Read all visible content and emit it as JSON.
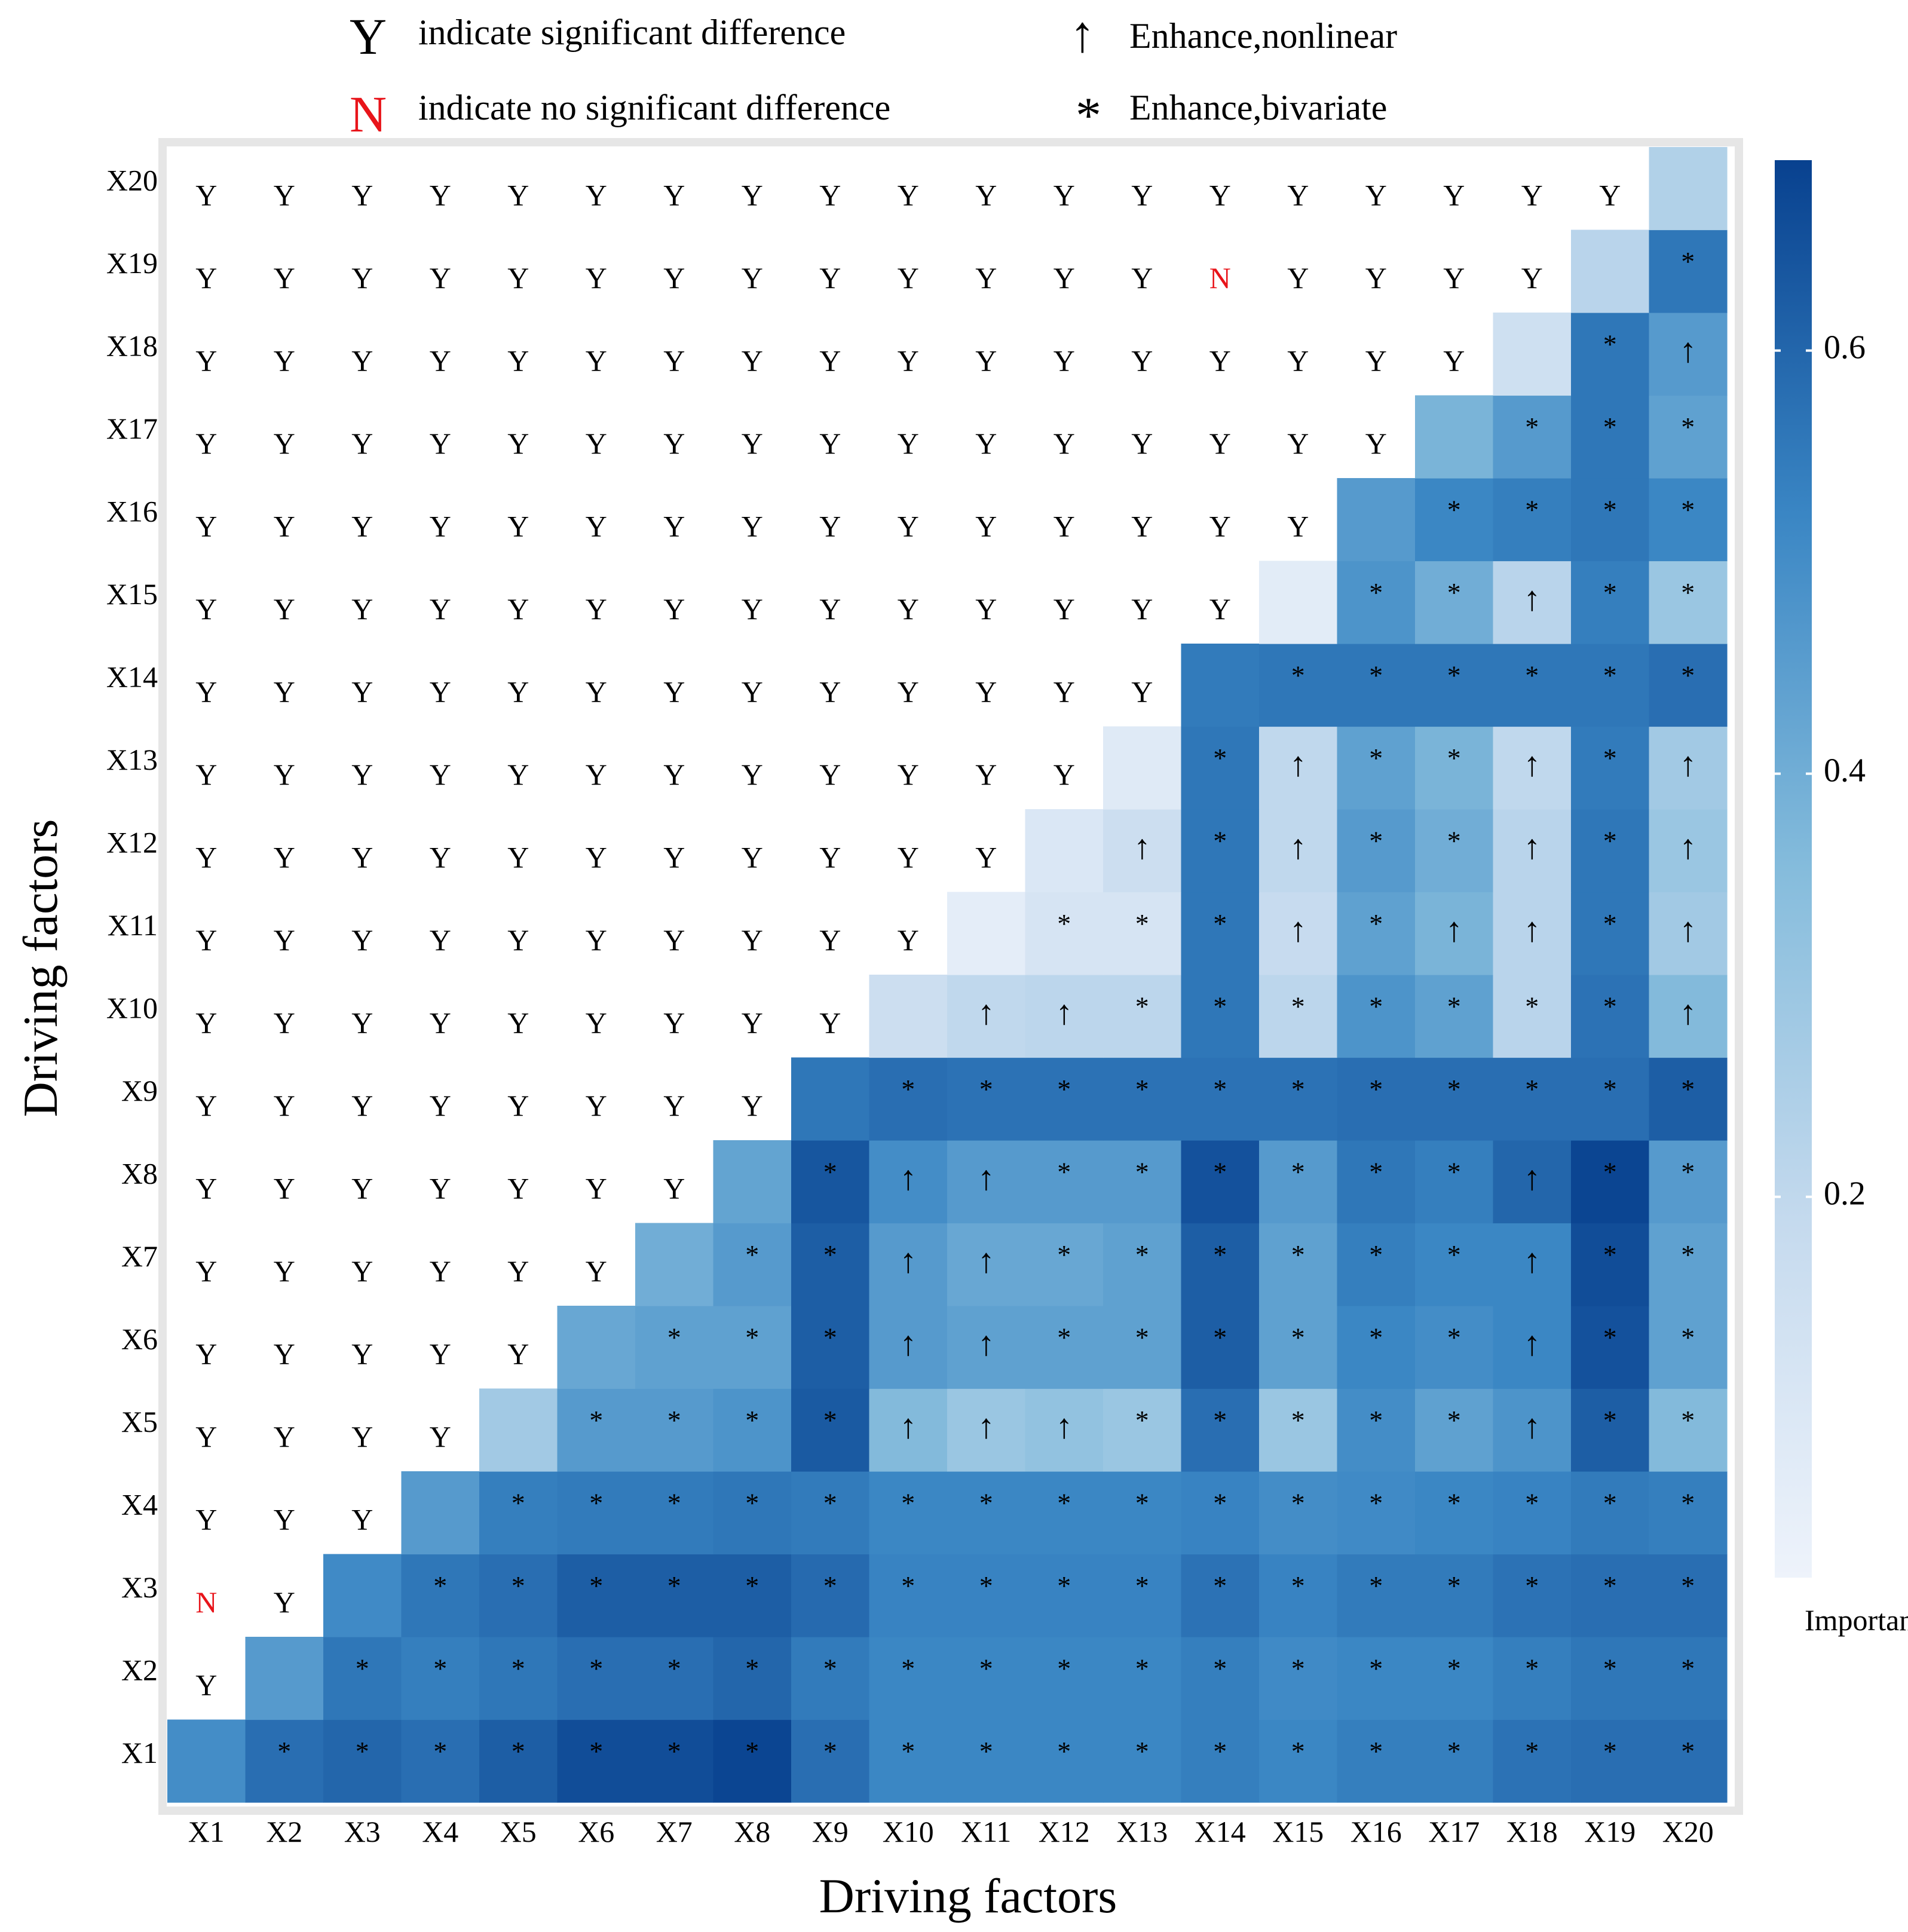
{
  "legend": {
    "y_symbol": "Y",
    "y_label": "indicate significant difference",
    "n_symbol": "N",
    "n_label": "indicate no significant difference",
    "arrow_symbol": "↑",
    "arrow_label": "Enhance,nonlinear",
    "star_symbol": "*",
    "star_label": "Enhance,bivariate",
    "y_color": "#000000",
    "n_color": "#e8141a"
  },
  "chart_data": {
    "type": "heatmap",
    "title": "",
    "xlabel": "Driving factors",
    "ylabel": "Driving factors",
    "colorbar_label": "Importance",
    "colorbar_range": [
      0.02,
      0.69
    ],
    "colorbar_ticks": [
      0.2,
      0.4,
      0.6
    ],
    "colorbar_tick_labels": [
      "0.2",
      "0.4",
      "0.6"
    ],
    "colors": {
      "low": "#eef3fb",
      "mid": "#6aaad6",
      "high": "#08306b",
      "panel_border": "#e6e6e6"
    },
    "factors": [
      "X1",
      "X2",
      "X3",
      "X4",
      "X5",
      "X6",
      "X7",
      "X8",
      "X9",
      "X10",
      "X11",
      "X12",
      "X13",
      "X14",
      "X15",
      "X16",
      "X17",
      "X18",
      "X19",
      "X20"
    ],
    "matrix_note": "importance[i][j] and marks[i][j]: row i = y factor (X1..X20), column j = x factor; cells with j >= i are colored, cells with j < i show significance letters",
    "importance": [
      [
        0.5,
        0.58,
        0.6,
        0.58,
        0.62,
        0.66,
        0.66,
        0.68,
        0.58,
        0.52,
        0.52,
        0.52,
        0.52,
        0.54,
        0.52,
        0.54,
        0.54,
        0.57,
        0.58,
        0.58
      ],
      [
        null,
        0.46,
        0.56,
        0.54,
        0.56,
        0.58,
        0.58,
        0.6,
        0.55,
        0.52,
        0.52,
        0.52,
        0.52,
        0.54,
        0.51,
        0.52,
        0.52,
        0.54,
        0.56,
        0.56
      ],
      [
        null,
        null,
        0.51,
        0.56,
        0.58,
        0.62,
        0.62,
        0.62,
        0.59,
        0.53,
        0.53,
        0.53,
        0.53,
        0.57,
        0.53,
        0.55,
        0.55,
        0.57,
        0.58,
        0.58
      ],
      [
        null,
        null,
        null,
        0.46,
        0.54,
        0.55,
        0.55,
        0.56,
        0.55,
        0.52,
        0.52,
        0.52,
        0.52,
        0.53,
        0.5,
        0.51,
        0.52,
        0.53,
        0.55,
        0.54
      ],
      [
        null,
        null,
        null,
        null,
        0.28,
        0.46,
        0.46,
        0.48,
        0.63,
        0.36,
        0.3,
        0.32,
        0.3,
        0.58,
        0.3,
        0.5,
        0.44,
        0.48,
        0.62,
        0.36
      ],
      [
        null,
        null,
        null,
        null,
        null,
        0.42,
        0.44,
        0.44,
        0.62,
        0.46,
        0.44,
        0.44,
        0.44,
        0.62,
        0.44,
        0.52,
        0.5,
        0.52,
        0.65,
        0.44
      ],
      [
        null,
        null,
        null,
        null,
        null,
        null,
        0.4,
        0.46,
        0.62,
        0.46,
        0.42,
        0.42,
        0.44,
        0.62,
        0.44,
        0.54,
        0.52,
        0.52,
        0.66,
        0.44
      ],
      [
        null,
        null,
        null,
        null,
        null,
        null,
        null,
        0.43,
        0.64,
        0.5,
        0.46,
        0.46,
        0.46,
        0.65,
        0.46,
        0.56,
        0.54,
        0.6,
        0.68,
        0.46
      ],
      [
        null,
        null,
        null,
        null,
        null,
        null,
        null,
        null,
        0.56,
        0.58,
        0.57,
        0.57,
        0.57,
        0.57,
        0.57,
        0.58,
        0.58,
        0.58,
        0.58,
        0.62
      ],
      [
        null,
        null,
        null,
        null,
        null,
        null,
        null,
        null,
        null,
        0.16,
        0.2,
        0.21,
        0.21,
        0.56,
        0.21,
        0.48,
        0.44,
        0.22,
        0.57,
        0.36
      ],
      [
        null,
        null,
        null,
        null,
        null,
        null,
        null,
        null,
        null,
        null,
        0.06,
        0.12,
        0.12,
        0.56,
        0.18,
        0.44,
        0.38,
        0.22,
        0.56,
        0.28
      ],
      [
        null,
        null,
        null,
        null,
        null,
        null,
        null,
        null,
        null,
        null,
        null,
        0.1,
        0.16,
        0.56,
        0.2,
        0.46,
        0.4,
        0.22,
        0.56,
        0.3
      ],
      [
        null,
        null,
        null,
        null,
        null,
        null,
        null,
        null,
        null,
        null,
        null,
        null,
        0.08,
        0.56,
        0.2,
        0.44,
        0.38,
        0.2,
        0.55,
        0.28
      ],
      [
        null,
        null,
        null,
        null,
        null,
        null,
        null,
        null,
        null,
        null,
        null,
        null,
        null,
        0.55,
        0.56,
        0.56,
        0.56,
        0.56,
        0.56,
        0.58
      ],
      [
        null,
        null,
        null,
        null,
        null,
        null,
        null,
        null,
        null,
        null,
        null,
        null,
        null,
        null,
        0.07,
        0.48,
        0.4,
        0.22,
        0.54,
        0.3
      ],
      [
        null,
        null,
        null,
        null,
        null,
        null,
        null,
        null,
        null,
        null,
        null,
        null,
        null,
        null,
        null,
        0.46,
        0.52,
        0.54,
        0.56,
        0.52
      ],
      [
        null,
        null,
        null,
        null,
        null,
        null,
        null,
        null,
        null,
        null,
        null,
        null,
        null,
        null,
        null,
        null,
        0.38,
        0.46,
        0.56,
        0.44
      ],
      [
        null,
        null,
        null,
        null,
        null,
        null,
        null,
        null,
        null,
        null,
        null,
        null,
        null,
        null,
        null,
        null,
        null,
        0.15,
        0.56,
        0.46
      ],
      [
        null,
        null,
        null,
        null,
        null,
        null,
        null,
        null,
        null,
        null,
        null,
        null,
        null,
        null,
        null,
        null,
        null,
        null,
        0.22,
        0.56
      ],
      [
        null,
        null,
        null,
        null,
        null,
        null,
        null,
        null,
        null,
        null,
        null,
        null,
        null,
        null,
        null,
        null,
        null,
        null,
        null,
        0.24
      ]
    ],
    "marks": [
      [
        "",
        "*",
        "*",
        "*",
        "*",
        "*",
        "*",
        "*",
        "*",
        "*",
        "*",
        "*",
        "*",
        "*",
        "*",
        "*",
        "*",
        "*",
        "*",
        "*"
      ],
      [
        "Y",
        "",
        "*",
        "*",
        "*",
        "*",
        "*",
        "*",
        "*",
        "*",
        "*",
        "*",
        "*",
        "*",
        "*",
        "*",
        "*",
        "*",
        "*",
        "*"
      ],
      [
        "N",
        "Y",
        "",
        "*",
        "*",
        "*",
        "*",
        "*",
        "*",
        "*",
        "*",
        "*",
        "*",
        "*",
        "*",
        "*",
        "*",
        "*",
        "*",
        "*"
      ],
      [
        "Y",
        "Y",
        "Y",
        "",
        "*",
        "*",
        "*",
        "*",
        "*",
        "*",
        "*",
        "*",
        "*",
        "*",
        "*",
        "*",
        "*",
        "*",
        "*",
        "*"
      ],
      [
        "Y",
        "Y",
        "Y",
        "Y",
        "",
        "*",
        "*",
        "*",
        "*",
        "↑",
        "↑",
        "↑",
        "*",
        "*",
        "*",
        "*",
        "*",
        "↑",
        "*",
        "*"
      ],
      [
        "Y",
        "Y",
        "Y",
        "Y",
        "Y",
        "",
        "*",
        "*",
        "*",
        "↑",
        "↑",
        "*",
        "*",
        "*",
        "*",
        "*",
        "*",
        "↑",
        "*",
        "*"
      ],
      [
        "Y",
        "Y",
        "Y",
        "Y",
        "Y",
        "Y",
        "",
        "*",
        "*",
        "↑",
        "↑",
        "*",
        "*",
        "*",
        "*",
        "*",
        "*",
        "↑",
        "*",
        "*"
      ],
      [
        "Y",
        "Y",
        "Y",
        "Y",
        "Y",
        "Y",
        "Y",
        "",
        "*",
        "↑",
        "↑",
        "*",
        "*",
        "*",
        "*",
        "*",
        "*",
        "↑",
        "*",
        "*"
      ],
      [
        "Y",
        "Y",
        "Y",
        "Y",
        "Y",
        "Y",
        "Y",
        "Y",
        "",
        "*",
        "*",
        "*",
        "*",
        "*",
        "*",
        "*",
        "*",
        "*",
        "*",
        "*"
      ],
      [
        "Y",
        "Y",
        "Y",
        "Y",
        "Y",
        "Y",
        "Y",
        "Y",
        "Y",
        "",
        "↑",
        "↑",
        "*",
        "*",
        "*",
        "*",
        "*",
        "*",
        "*",
        "↑"
      ],
      [
        "Y",
        "Y",
        "Y",
        "Y",
        "Y",
        "Y",
        "Y",
        "Y",
        "Y",
        "Y",
        "",
        "*",
        "*",
        "*",
        "↑",
        "*",
        "↑",
        "↑",
        "*",
        "↑"
      ],
      [
        "Y",
        "Y",
        "Y",
        "Y",
        "Y",
        "Y",
        "Y",
        "Y",
        "Y",
        "Y",
        "Y",
        "",
        "↑",
        "*",
        "↑",
        "*",
        "*",
        "↑",
        "*",
        "↑"
      ],
      [
        "Y",
        "Y",
        "Y",
        "Y",
        "Y",
        "Y",
        "Y",
        "Y",
        "Y",
        "Y",
        "Y",
        "Y",
        "",
        "*",
        "↑",
        "*",
        "*",
        "↑",
        "*",
        "↑"
      ],
      [
        "Y",
        "Y",
        "Y",
        "Y",
        "Y",
        "Y",
        "Y",
        "Y",
        "Y",
        "Y",
        "Y",
        "Y",
        "Y",
        "",
        "*",
        "*",
        "*",
        "*",
        "*",
        "*"
      ],
      [
        "Y",
        "Y",
        "Y",
        "Y",
        "Y",
        "Y",
        "Y",
        "Y",
        "Y",
        "Y",
        "Y",
        "Y",
        "Y",
        "Y",
        "",
        "*",
        "*",
        "↑",
        "*",
        "*"
      ],
      [
        "Y",
        "Y",
        "Y",
        "Y",
        "Y",
        "Y",
        "Y",
        "Y",
        "Y",
        "Y",
        "Y",
        "Y",
        "Y",
        "Y",
        "Y",
        "",
        "*",
        "*",
        "*",
        "*"
      ],
      [
        "Y",
        "Y",
        "Y",
        "Y",
        "Y",
        "Y",
        "Y",
        "Y",
        "Y",
        "Y",
        "Y",
        "Y",
        "Y",
        "Y",
        "Y",
        "Y",
        "",
        "*",
        "*",
        "*"
      ],
      [
        "Y",
        "Y",
        "Y",
        "Y",
        "Y",
        "Y",
        "Y",
        "Y",
        "Y",
        "Y",
        "Y",
        "Y",
        "Y",
        "Y",
        "Y",
        "Y",
        "Y",
        "",
        "*",
        "↑"
      ],
      [
        "Y",
        "Y",
        "Y",
        "Y",
        "Y",
        "Y",
        "Y",
        "Y",
        "Y",
        "Y",
        "Y",
        "Y",
        "Y",
        "N",
        "Y",
        "Y",
        "Y",
        "Y",
        "",
        "*"
      ],
      [
        "Y",
        "Y",
        "Y",
        "Y",
        "Y",
        "Y",
        "Y",
        "Y",
        "Y",
        "Y",
        "Y",
        "Y",
        "Y",
        "Y",
        "Y",
        "Y",
        "Y",
        "Y",
        "Y",
        ""
      ]
    ]
  }
}
